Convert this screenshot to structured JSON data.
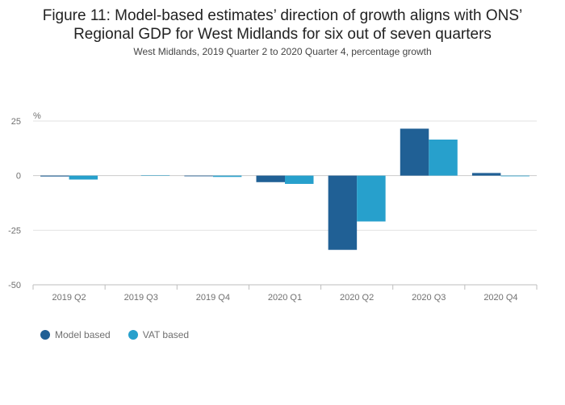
{
  "title_lines": [
    "Figure 11: Model-based estimates’ direction of growth aligns with ONS’",
    "Regional GDP for West Midlands for six out of seven quarters"
  ],
  "subtitle": "West Midlands, 2019 Quarter 2 to 2020 Quarter 4, percentage growth",
  "chart_data": {
    "type": "bar",
    "title": "Figure 11: Model-based estimates’ direction of growth aligns with ONS’ Regional GDP for West Midlands for six out of seven quarters",
    "subtitle": "West Midlands, 2019 Quarter 2 to 2020 Quarter 4, percentage growth",
    "ylabel": "%",
    "xlabel": "",
    "ylim": [
      -50,
      25
    ],
    "yticks": [
      25,
      0,
      -25,
      -50
    ],
    "ytick_labels": [
      "25",
      "0",
      "-25",
      "-50"
    ],
    "grid": true,
    "legend_position": "bottom-left",
    "categories": [
      "2019 Q2",
      "2019 Q3",
      "2019 Q4",
      "2020 Q1",
      "2020 Q2",
      "2020 Q3",
      "2020 Q4"
    ],
    "series": [
      {
        "name": "Model based",
        "color": "#206095",
        "values": [
          -0.4,
          0.0,
          -0.3,
          -3.0,
          -34.0,
          21.5,
          1.2
        ]
      },
      {
        "name": "VAT based",
        "color": "#27a0cc",
        "values": [
          -1.8,
          0.2,
          -0.6,
          -3.8,
          -21.0,
          16.5,
          -0.3
        ]
      }
    ]
  }
}
